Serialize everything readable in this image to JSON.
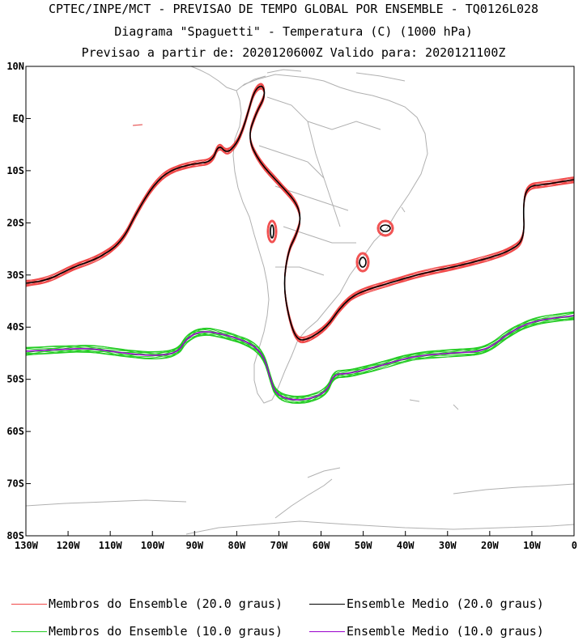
{
  "header": {
    "line1": "CPTEC/INPE/MCT - PREVISAO DE TEMPO GLOBAL POR ENSEMBLE - TQ0126L028",
    "line2": "Diagrama \"Spaguetti\" - Temperatura (C) (1000 hPa)",
    "line3": "Previsao a partir de: 2020120600Z  Valido para: 2020121100Z"
  },
  "axes": {
    "y_ticks": [
      "10N",
      "EQ",
      "10S",
      "20S",
      "30S",
      "40S",
      "50S",
      "60S",
      "70S",
      "80S"
    ],
    "x_ticks": [
      "130W",
      "120W",
      "110W",
      "100W",
      "90W",
      "80W",
      "70W",
      "60W",
      "50W",
      "40W",
      "30W",
      "20W",
      "10W",
      "0"
    ]
  },
  "legend": [
    {
      "label": "Membros do Ensemble (20.0 graus)",
      "color": "#f04848"
    },
    {
      "label": "Ensemble Medio (20.0 graus)",
      "color": "#000000"
    },
    {
      "label": "Membros do Ensemble (10.0 graus)",
      "color": "#22cc22"
    },
    {
      "label": "Ensemble Medio (10.0 graus)",
      "color": "#9900cc"
    }
  ],
  "colors": {
    "coastline": "#b0b0b0",
    "frame": "#000000",
    "iso20_members": "#f04848",
    "iso20_mean": "#000000",
    "iso10_members": "#22cc22",
    "iso10_mean": "#9900cc"
  }
}
